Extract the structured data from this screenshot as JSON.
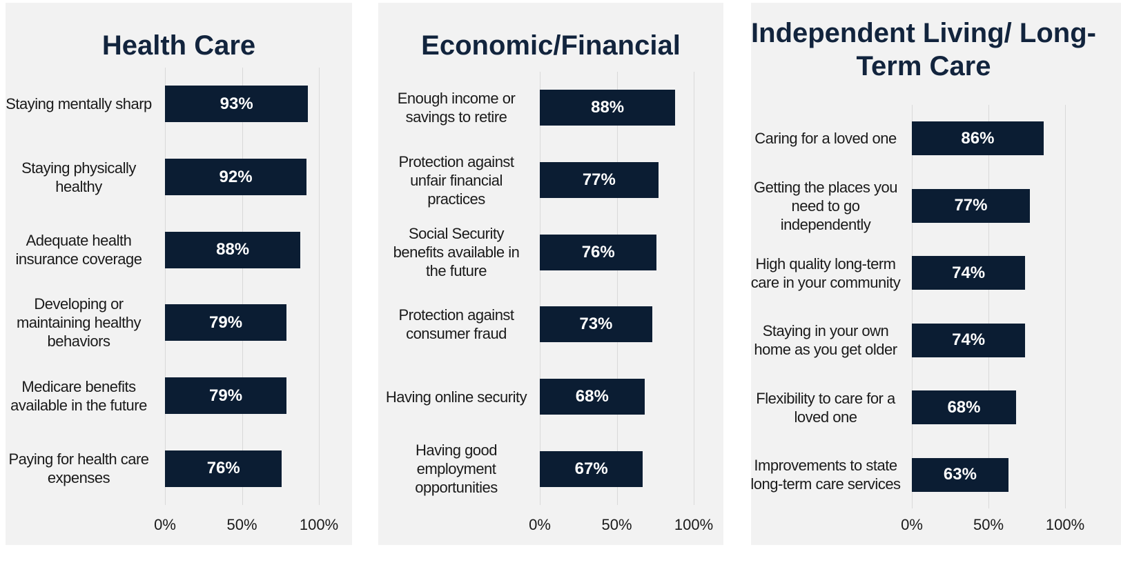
{
  "chart_data": [
    {
      "type": "bar",
      "orientation": "horizontal",
      "title": "Health Care",
      "categories": [
        "Staying mentally sharp",
        "Staying physically healthy",
        "Adequate health insurance coverage",
        "Developing or maintaining healthy behaviors",
        "Medicare benefits available in the future",
        "Paying for health care expenses"
      ],
      "values": [
        93,
        92,
        88,
        79,
        79,
        76
      ],
      "value_labels": [
        "93%",
        "92%",
        "88%",
        "79%",
        "79%",
        "76%"
      ],
      "color": "#0b1d33",
      "xlim": [
        0,
        100
      ],
      "xticks": [
        {
          "value": 0,
          "label": "0%"
        },
        {
          "value": 50,
          "label": "50%"
        },
        {
          "value": 100,
          "label": "100%"
        }
      ],
      "grid": true
    },
    {
      "type": "bar",
      "orientation": "horizontal",
      "title": "Economic/Financial",
      "categories": [
        "Enough income or savings to retire",
        "Protection against unfair financial practices",
        "Social Security benefits available in the future",
        "Protection against consumer fraud",
        "Having online security",
        "Having good employment opportunities"
      ],
      "values": [
        88,
        77,
        76,
        73,
        68,
        67
      ],
      "value_labels": [
        "88%",
        "77%",
        "76%",
        "73%",
        "68%",
        "67%"
      ],
      "color": "#0b1d33",
      "xlim": [
        0,
        100
      ],
      "xticks": [
        {
          "value": 0,
          "label": "0%"
        },
        {
          "value": 50,
          "label": "50%"
        },
        {
          "value": 100,
          "label": "100%"
        }
      ],
      "grid": true
    },
    {
      "type": "bar",
      "orientation": "horizontal",
      "title": "Independent Living/ Long-Term Care",
      "categories": [
        "Caring for a loved one",
        "Getting the places you need to go independently",
        "High quality long-term care in your community",
        "Staying in your own home as you get older",
        "Flexibility to care for a loved one",
        "Improvements to state long-term care services"
      ],
      "values": [
        86,
        77,
        74,
        74,
        68,
        63
      ],
      "value_labels": [
        "86%",
        "77%",
        "74%",
        "74%",
        "68%",
        "63%"
      ],
      "color": "#0b1d33",
      "xlim": [
        0,
        100
      ],
      "xticks": [
        {
          "value": 0,
          "label": "0%"
        },
        {
          "value": 50,
          "label": "50%"
        },
        {
          "value": 100,
          "label": "100%"
        }
      ],
      "grid": true
    }
  ]
}
